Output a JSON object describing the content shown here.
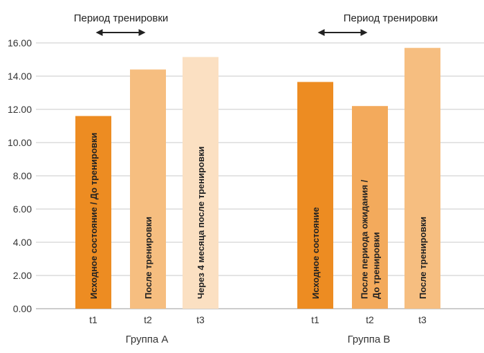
{
  "chart_data": {
    "type": "bar",
    "ylim": [
      0,
      16
    ],
    "yticks": [
      "0.00",
      "2.00",
      "4.00",
      "6.00",
      "8.00",
      "10.00",
      "12.00",
      "14.00",
      "16.00"
    ],
    "grid": true,
    "groups": [
      {
        "name": "Группа A",
        "period_label": "Период тренировки",
        "bars": [
          {
            "category": "t1",
            "value": 11.6,
            "label": [
              "Исходное состояние / До тренировки"
            ],
            "color": "#ed8c22"
          },
          {
            "category": "t2",
            "value": 14.4,
            "label": [
              "После тренировки"
            ],
            "color": "#f6be80"
          },
          {
            "category": "t3",
            "value": 15.15,
            "label": [
              "Через 4 месяца после тренировки"
            ],
            "color": "#fbe0c2"
          }
        ]
      },
      {
        "name": "Группа B",
        "period_label": "Период тренировки",
        "bars": [
          {
            "category": "t1",
            "value": 13.65,
            "label": [
              "Исходное состояние"
            ],
            "color": "#ed8c22"
          },
          {
            "category": "t2",
            "value": 12.2,
            "label": [
              "После периода ожидания /",
              "До тренировки"
            ],
            "color": "#f3aa5c"
          },
          {
            "category": "t3",
            "value": 15.7,
            "label": [
              "После тренировки"
            ],
            "color": "#f6be80"
          }
        ]
      }
    ]
  }
}
